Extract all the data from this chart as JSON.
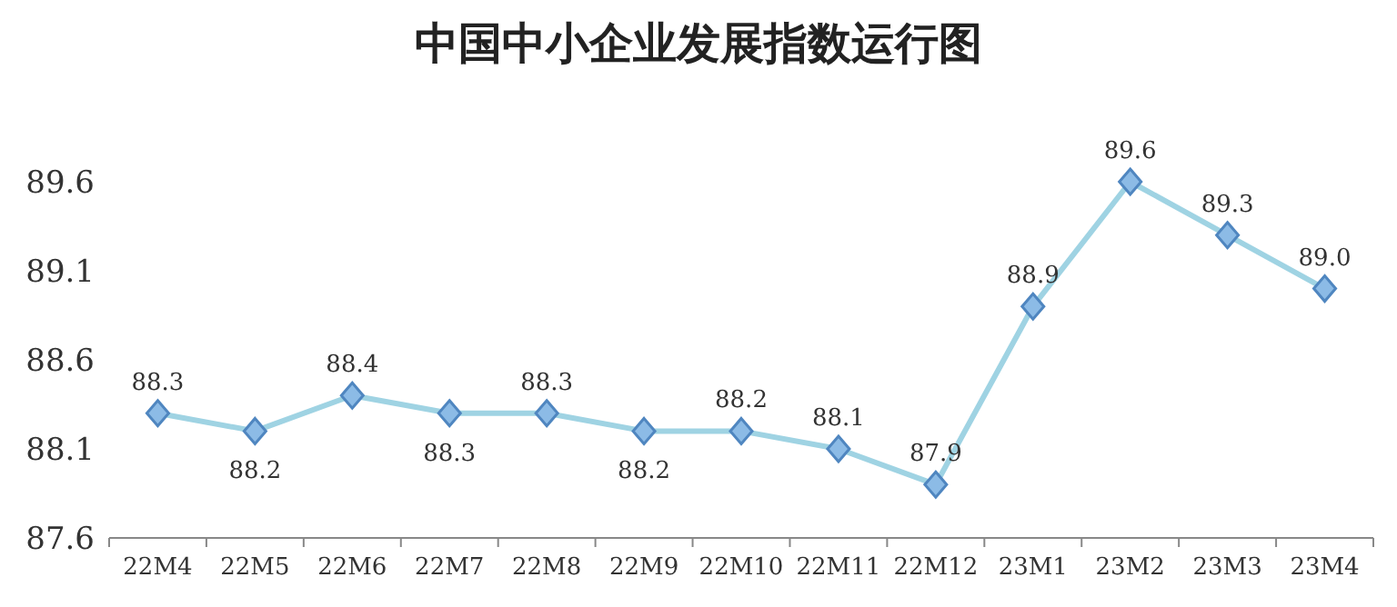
{
  "chart_data": {
    "type": "line",
    "title": "中国中小企业发展指数运行图",
    "categories": [
      "22M4",
      "22M5",
      "22M6",
      "22M7",
      "22M8",
      "22M9",
      "22M10",
      "22M11",
      "22M12",
      "23M1",
      "23M2",
      "23M3",
      "23M4"
    ],
    "series": [
      {
        "color": "#9fd3e3",
        "values": [
          88.3,
          88.2,
          88.4,
          88.3,
          88.3,
          88.2,
          88.2,
          88.1,
          87.9,
          88.9,
          89.6,
          89.3,
          89.0
        ]
      }
    ],
    "value_labels": [
      "88.3",
      "88.2",
      "88.4",
      "88.3",
      "88.3",
      "88.2",
      "88.2",
      "88.1",
      "87.9",
      "88.9",
      "89.6",
      "89.3",
      "89.0"
    ],
    "ylim": [
      87.6,
      89.6
    ],
    "yticks": [
      87.6,
      88.1,
      88.6,
      89.1,
      89.6
    ],
    "marker": "diamond",
    "grid": false
  }
}
